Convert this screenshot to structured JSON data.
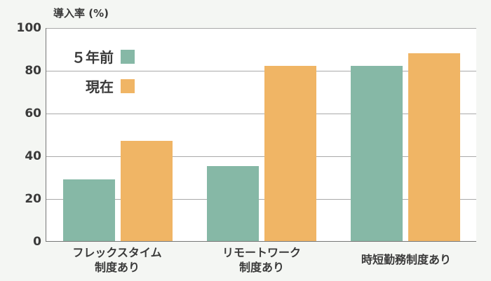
{
  "chart_data": {
    "type": "bar",
    "title": "",
    "ylabel": "導入率 (%)",
    "xlabel": "",
    "ylim": [
      0,
      100
    ],
    "yticks": [
      0,
      20,
      40,
      60,
      80,
      100
    ],
    "grid": true,
    "legend_position": "top-left inside",
    "categories": [
      "フレックスタイム\n制度あり",
      "リモートワーク\n制度あり",
      "時短勤務制度あり"
    ],
    "series": [
      {
        "name": "５年前",
        "color": "#86b8a6",
        "values": [
          29,
          35,
          82
        ]
      },
      {
        "name": "現在",
        "color": "#f0b565",
        "values": [
          47,
          82,
          88
        ]
      }
    ]
  },
  "axis": {
    "ylabel": "導入率 (%)",
    "ticks": [
      "0",
      "20",
      "40",
      "60",
      "80",
      "100"
    ]
  },
  "legend": {
    "items": [
      {
        "label": "５年前",
        "color": "#86b8a6"
      },
      {
        "label": "現在",
        "color": "#f0b565"
      }
    ]
  },
  "categories": [
    {
      "label": "フレックスタイム\n制度あり"
    },
    {
      "label": "リモートワーク\n制度あり"
    },
    {
      "label": "時短勤務制度あり"
    }
  ]
}
